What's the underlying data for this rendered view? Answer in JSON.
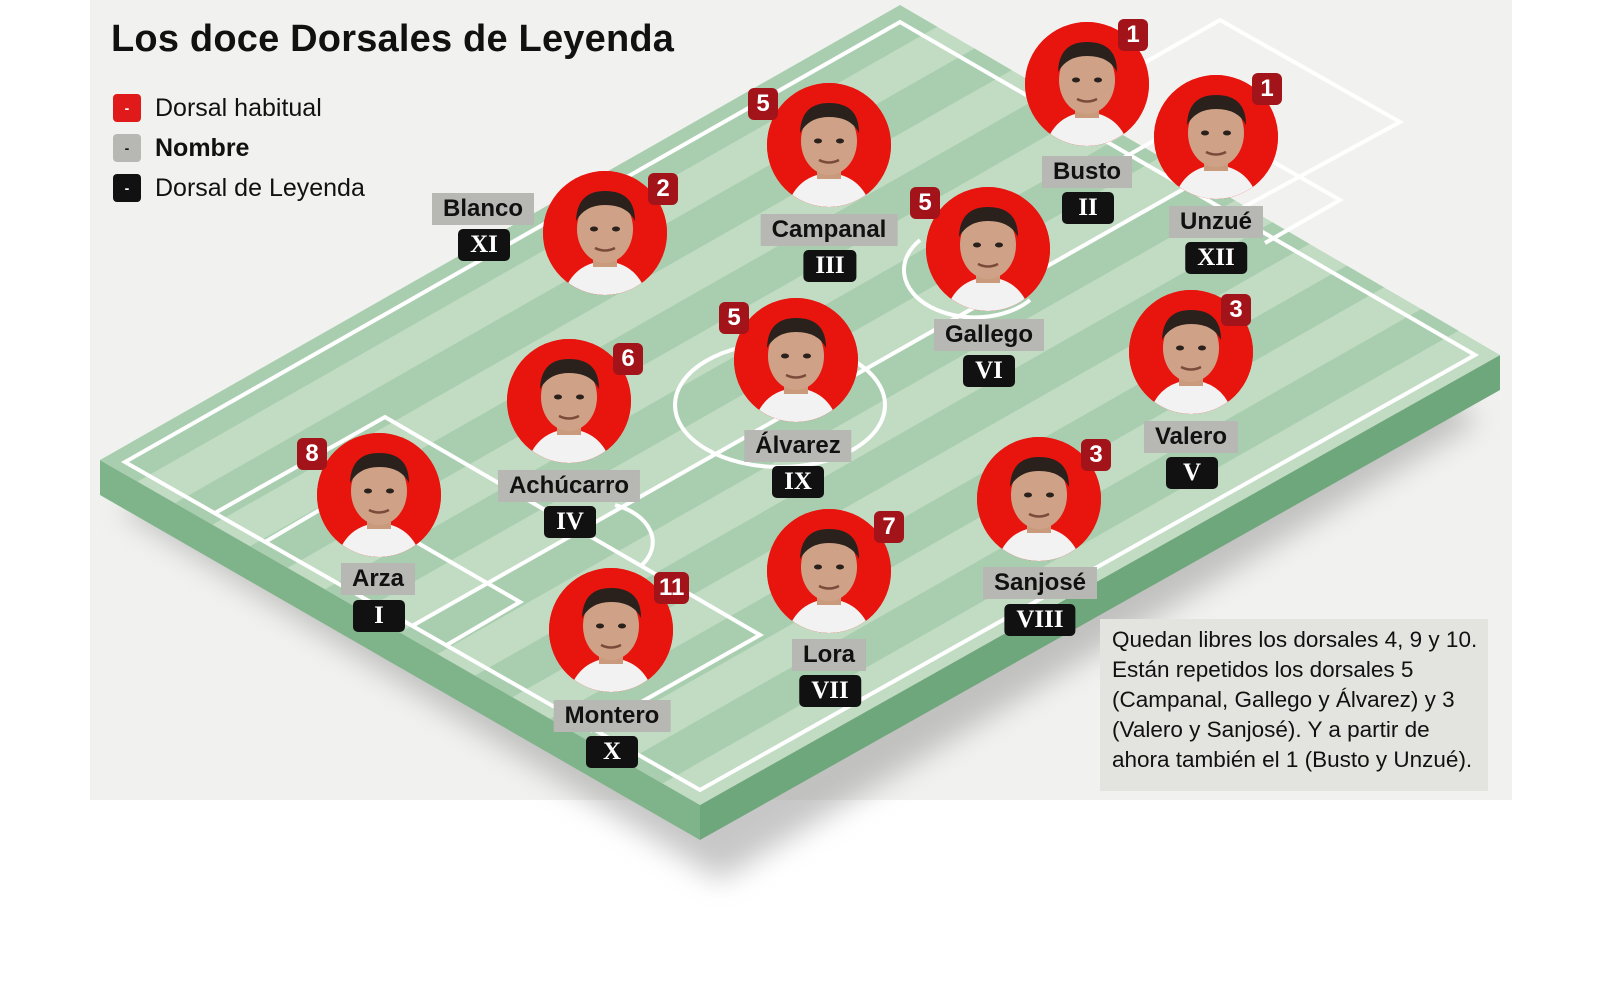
{
  "title": "Los doce Dorsales de Leyenda",
  "legend": [
    {
      "swatch": "-",
      "label": "Dorsal habitual",
      "style": "red"
    },
    {
      "swatch": "-",
      "label": "Nombre",
      "style": "grey"
    },
    {
      "swatch": "-",
      "label": "Dorsal de Leyenda",
      "style": "black"
    }
  ],
  "players": [
    {
      "name": "Arza",
      "dorsal": "8",
      "legend_dorsal": "I"
    },
    {
      "name": "Busto",
      "dorsal": "1",
      "legend_dorsal": "II"
    },
    {
      "name": "Campanal",
      "dorsal": "5",
      "legend_dorsal": "III"
    },
    {
      "name": "Achúcarro",
      "dorsal": "6",
      "legend_dorsal": "IV"
    },
    {
      "name": "Valero",
      "dorsal": "3",
      "legend_dorsal": "V"
    },
    {
      "name": "Gallego",
      "dorsal": "5",
      "legend_dorsal": "VI"
    },
    {
      "name": "Lora",
      "dorsal": "7",
      "legend_dorsal": "VII"
    },
    {
      "name": "Sanjosé",
      "dorsal": "3",
      "legend_dorsal": "VIII"
    },
    {
      "name": "Álvarez",
      "dorsal": "5",
      "legend_dorsal": "IX"
    },
    {
      "name": "Montero",
      "dorsal": "11",
      "legend_dorsal": "X"
    },
    {
      "name": "Blanco",
      "dorsal": "2",
      "legend_dorsal": "XI"
    },
    {
      "name": "Unzué",
      "dorsal": "1",
      "legend_dorsal": "XII"
    }
  ],
  "note": [
    "Quedan libres los dorsales 4, 9 y 10.",
    "Están repetidos los dorsales 5",
    "(Campanal, Gallego y Álvarez) y 3",
    "(Valero y Sanjosé). Y a partir de",
    "ahora también el 1 (Busto y Unzué)."
  ],
  "colors": {
    "pitch_light": "#c1dcc3",
    "pitch_dark": "#a9ceaf",
    "pitch_edge": "#6fa77c",
    "dorsal_red": "#e01a1a",
    "badge_red": "#a3131a",
    "name_grey": "#b7b7b3",
    "roman_black": "#111111"
  }
}
